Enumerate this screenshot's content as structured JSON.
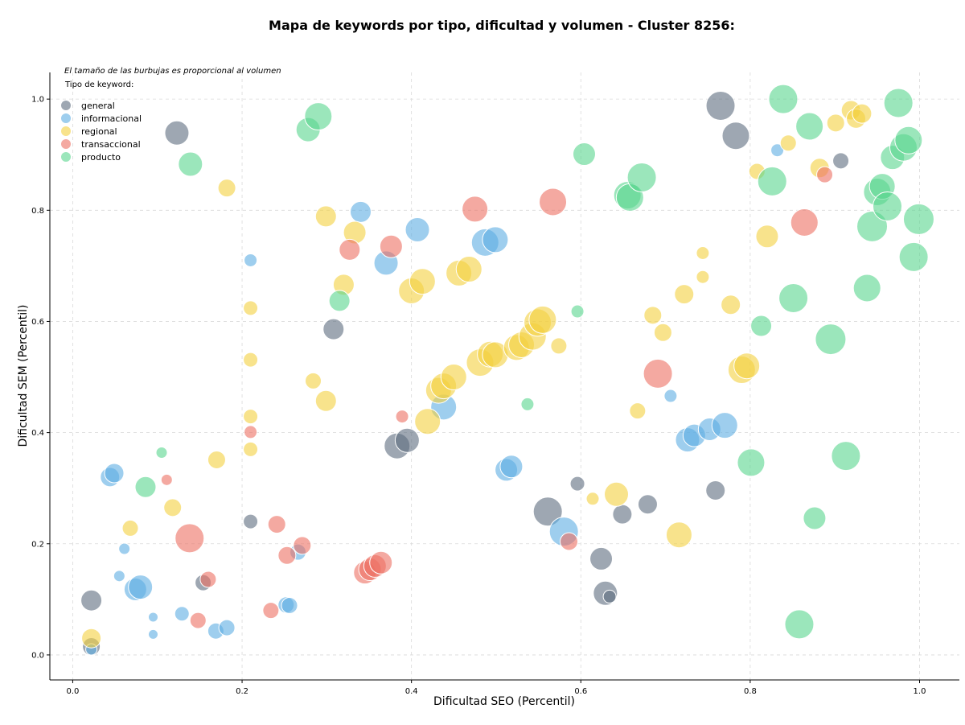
{
  "chart_data": {
    "type": "scatter",
    "title": "Mapa de keywords por tipo, dificultad y volumen - Cluster 8256:",
    "xlabel": "Dificultad SEO (Percentil)",
    "ylabel": "Dificultad SEM (Percentil)",
    "xlim": [
      -0.027,
      1.047
    ],
    "ylim": [
      -0.045,
      1.048
    ],
    "xticks": [
      "0.0",
      "0.2",
      "0.4",
      "0.6",
      "0.8",
      "1.0"
    ],
    "yticks": [
      "0.0",
      "0.2",
      "0.4",
      "0.6",
      "0.8",
      "1.0"
    ],
    "grid": true,
    "legend_placement": "top-left",
    "note": "El tamaño de las burbujas es proporcional al volumen",
    "legend_title": "Tipo de keyword:",
    "series": [
      {
        "name": "general",
        "color": "#5d6d7e",
        "points": [
          {
            "x": 0.022,
            "y": 0.098,
            "r": 13
          },
          {
            "x": 0.022,
            "y": 0.015,
            "r": 11
          },
          {
            "x": 0.123,
            "y": 0.939,
            "r": 15
          },
          {
            "x": 0.154,
            "y": 0.13,
            "r": 10
          },
          {
            "x": 0.21,
            "y": 0.24,
            "r": 9
          },
          {
            "x": 0.308,
            "y": 0.586,
            "r": 13
          },
          {
            "x": 0.383,
            "y": 0.376,
            "r": 16
          },
          {
            "x": 0.395,
            "y": 0.386,
            "r": 15
          },
          {
            "x": 0.561,
            "y": 0.258,
            "r": 18
          },
          {
            "x": 0.596,
            "y": 0.308,
            "r": 9
          },
          {
            "x": 0.624,
            "y": 0.173,
            "r": 14
          },
          {
            "x": 0.629,
            "y": 0.111,
            "r": 15
          },
          {
            "x": 0.634,
            "y": 0.105,
            "r": 8
          },
          {
            "x": 0.649,
            "y": 0.253,
            "r": 12
          },
          {
            "x": 0.679,
            "y": 0.271,
            "r": 12
          },
          {
            "x": 0.759,
            "y": 0.296,
            "r": 12
          },
          {
            "x": 0.765,
            "y": 0.988,
            "r": 18
          },
          {
            "x": 0.783,
            "y": 0.934,
            "r": 17
          },
          {
            "x": 0.907,
            "y": 0.889,
            "r": 10
          }
        ]
      },
      {
        "name": "informacional",
        "color": "#5dade2",
        "points": [
          {
            "x": 0.022,
            "y": 0.01,
            "r": 7
          },
          {
            "x": 0.044,
            "y": 0.32,
            "r": 12
          },
          {
            "x": 0.049,
            "y": 0.327,
            "r": 12
          },
          {
            "x": 0.055,
            "y": 0.142,
            "r": 7
          },
          {
            "x": 0.061,
            "y": 0.191,
            "r": 7
          },
          {
            "x": 0.074,
            "y": 0.118,
            "r": 14
          },
          {
            "x": 0.08,
            "y": 0.122,
            "r": 15
          },
          {
            "x": 0.095,
            "y": 0.068,
            "r": 6
          },
          {
            "x": 0.095,
            "y": 0.037,
            "r": 6
          },
          {
            "x": 0.129,
            "y": 0.074,
            "r": 9
          },
          {
            "x": 0.169,
            "y": 0.043,
            "r": 10
          },
          {
            "x": 0.182,
            "y": 0.049,
            "r": 10
          },
          {
            "x": 0.21,
            "y": 0.71,
            "r": 8
          },
          {
            "x": 0.252,
            "y": 0.09,
            "r": 10
          },
          {
            "x": 0.256,
            "y": 0.089,
            "r": 10
          },
          {
            "x": 0.266,
            "y": 0.185,
            "r": 10
          },
          {
            "x": 0.34,
            "y": 0.797,
            "r": 13
          },
          {
            "x": 0.37,
            "y": 0.705,
            "r": 15
          },
          {
            "x": 0.407,
            "y": 0.765,
            "r": 15
          },
          {
            "x": 0.438,
            "y": 0.446,
            "r": 16
          },
          {
            "x": 0.487,
            "y": 0.742,
            "r": 17
          },
          {
            "x": 0.499,
            "y": 0.747,
            "r": 16
          },
          {
            "x": 0.512,
            "y": 0.333,
            "r": 14
          },
          {
            "x": 0.518,
            "y": 0.339,
            "r": 14
          },
          {
            "x": 0.58,
            "y": 0.222,
            "r": 18
          },
          {
            "x": 0.706,
            "y": 0.466,
            "r": 8
          },
          {
            "x": 0.726,
            "y": 0.387,
            "r": 15
          },
          {
            "x": 0.734,
            "y": 0.395,
            "r": 14
          },
          {
            "x": 0.752,
            "y": 0.406,
            "r": 14
          },
          {
            "x": 0.77,
            "y": 0.413,
            "r": 16
          },
          {
            "x": 0.832,
            "y": 0.908,
            "r": 8
          }
        ]
      },
      {
        "name": "regional",
        "color": "#f4d03f",
        "points": [
          {
            "x": 0.022,
            "y": 0.03,
            "r": 12
          },
          {
            "x": 0.068,
            "y": 0.228,
            "r": 10
          },
          {
            "x": 0.118,
            "y": 0.265,
            "r": 11
          },
          {
            "x": 0.17,
            "y": 0.351,
            "r": 11
          },
          {
            "x": 0.182,
            "y": 0.84,
            "r": 11
          },
          {
            "x": 0.21,
            "y": 0.624,
            "r": 9
          },
          {
            "x": 0.21,
            "y": 0.531,
            "r": 9
          },
          {
            "x": 0.21,
            "y": 0.429,
            "r": 9
          },
          {
            "x": 0.21,
            "y": 0.37,
            "r": 9
          },
          {
            "x": 0.284,
            "y": 0.493,
            "r": 10
          },
          {
            "x": 0.299,
            "y": 0.789,
            "r": 13
          },
          {
            "x": 0.299,
            "y": 0.457,
            "r": 13
          },
          {
            "x": 0.32,
            "y": 0.666,
            "r": 13
          },
          {
            "x": 0.333,
            "y": 0.76,
            "r": 14
          },
          {
            "x": 0.4,
            "y": 0.655,
            "r": 16
          },
          {
            "x": 0.413,
            "y": 0.672,
            "r": 16
          },
          {
            "x": 0.419,
            "y": 0.42,
            "r": 16
          },
          {
            "x": 0.432,
            "y": 0.476,
            "r": 16
          },
          {
            "x": 0.438,
            "y": 0.484,
            "r": 16
          },
          {
            "x": 0.45,
            "y": 0.5,
            "r": 16
          },
          {
            "x": 0.456,
            "y": 0.687,
            "r": 16
          },
          {
            "x": 0.468,
            "y": 0.694,
            "r": 16
          },
          {
            "x": 0.481,
            "y": 0.526,
            "r": 17
          },
          {
            "x": 0.493,
            "y": 0.541,
            "r": 16
          },
          {
            "x": 0.499,
            "y": 0.54,
            "r": 16
          },
          {
            "x": 0.524,
            "y": 0.553,
            "r": 16
          },
          {
            "x": 0.53,
            "y": 0.558,
            "r": 16
          },
          {
            "x": 0.543,
            "y": 0.573,
            "r": 17
          },
          {
            "x": 0.549,
            "y": 0.598,
            "r": 17
          },
          {
            "x": 0.555,
            "y": 0.603,
            "r": 17
          },
          {
            "x": 0.574,
            "y": 0.556,
            "r": 10
          },
          {
            "x": 0.614,
            "y": 0.281,
            "r": 8
          },
          {
            "x": 0.642,
            "y": 0.289,
            "r": 15
          },
          {
            "x": 0.667,
            "y": 0.439,
            "r": 10
          },
          {
            "x": 0.685,
            "y": 0.611,
            "r": 11
          },
          {
            "x": 0.697,
            "y": 0.58,
            "r": 11
          },
          {
            "x": 0.716,
            "y": 0.216,
            "r": 16
          },
          {
            "x": 0.722,
            "y": 0.649,
            "r": 12
          },
          {
            "x": 0.744,
            "y": 0.723,
            "r": 8
          },
          {
            "x": 0.744,
            "y": 0.68,
            "r": 8
          },
          {
            "x": 0.777,
            "y": 0.63,
            "r": 12
          },
          {
            "x": 0.79,
            "y": 0.513,
            "r": 17
          },
          {
            "x": 0.796,
            "y": 0.52,
            "r": 16
          },
          {
            "x": 0.808,
            "y": 0.87,
            "r": 10
          },
          {
            "x": 0.82,
            "y": 0.753,
            "r": 14
          },
          {
            "x": 0.845,
            "y": 0.921,
            "r": 10
          },
          {
            "x": 0.882,
            "y": 0.876,
            "r": 12
          },
          {
            "x": 0.901,
            "y": 0.957,
            "r": 11
          },
          {
            "x": 0.919,
            "y": 0.98,
            "r": 12
          },
          {
            "x": 0.925,
            "y": 0.965,
            "r": 12
          },
          {
            "x": 0.932,
            "y": 0.974,
            "r": 12
          }
        ]
      },
      {
        "name": "transaccional",
        "color": "#ec7063",
        "points": [
          {
            "x": 0.111,
            "y": 0.315,
            "r": 7
          },
          {
            "x": 0.138,
            "y": 0.21,
            "r": 18
          },
          {
            "x": 0.148,
            "y": 0.062,
            "r": 10
          },
          {
            "x": 0.16,
            "y": 0.136,
            "r": 10
          },
          {
            "x": 0.21,
            "y": 0.401,
            "r": 8
          },
          {
            "x": 0.234,
            "y": 0.08,
            "r": 10
          },
          {
            "x": 0.241,
            "y": 0.235,
            "r": 11
          },
          {
            "x": 0.253,
            "y": 0.179,
            "r": 11
          },
          {
            "x": 0.271,
            "y": 0.197,
            "r": 11
          },
          {
            "x": 0.327,
            "y": 0.729,
            "r": 13
          },
          {
            "x": 0.345,
            "y": 0.148,
            "r": 14
          },
          {
            "x": 0.351,
            "y": 0.154,
            "r": 14
          },
          {
            "x": 0.357,
            "y": 0.16,
            "r": 14
          },
          {
            "x": 0.364,
            "y": 0.166,
            "r": 14
          },
          {
            "x": 0.376,
            "y": 0.735,
            "r": 14
          },
          {
            "x": 0.389,
            "y": 0.429,
            "r": 8
          },
          {
            "x": 0.475,
            "y": 0.802,
            "r": 16
          },
          {
            "x": 0.567,
            "y": 0.815,
            "r": 17
          },
          {
            "x": 0.586,
            "y": 0.204,
            "r": 11
          },
          {
            "x": 0.691,
            "y": 0.506,
            "r": 18
          },
          {
            "x": 0.864,
            "y": 0.778,
            "r": 17
          },
          {
            "x": 0.888,
            "y": 0.864,
            "r": 10
          }
        ]
      },
      {
        "name": "producto",
        "color": "#58d68d",
        "points": [
          {
            "x": 0.086,
            "y": 0.302,
            "r": 13
          },
          {
            "x": 0.105,
            "y": 0.364,
            "r": 7
          },
          {
            "x": 0.139,
            "y": 0.883,
            "r": 15
          },
          {
            "x": 0.278,
            "y": 0.945,
            "r": 15
          },
          {
            "x": 0.29,
            "y": 0.969,
            "r": 17
          },
          {
            "x": 0.315,
            "y": 0.637,
            "r": 13
          },
          {
            "x": 0.537,
            "y": 0.451,
            "r": 8
          },
          {
            "x": 0.596,
            "y": 0.618,
            "r": 8
          },
          {
            "x": 0.604,
            "y": 0.901,
            "r": 14
          },
          {
            "x": 0.655,
            "y": 0.827,
            "r": 17
          },
          {
            "x": 0.658,
            "y": 0.823,
            "r": 17
          },
          {
            "x": 0.672,
            "y": 0.859,
            "r": 18
          },
          {
            "x": 0.801,
            "y": 0.346,
            "r": 17
          },
          {
            "x": 0.813,
            "y": 0.592,
            "r": 13
          },
          {
            "x": 0.826,
            "y": 0.852,
            "r": 18
          },
          {
            "x": 0.839,
            "y": 1.0,
            "r": 18
          },
          {
            "x": 0.851,
            "y": 0.642,
            "r": 18
          },
          {
            "x": 0.858,
            "y": 0.055,
            "r": 18
          },
          {
            "x": 0.87,
            "y": 0.951,
            "r": 17
          },
          {
            "x": 0.876,
            "y": 0.246,
            "r": 14
          },
          {
            "x": 0.895,
            "y": 0.568,
            "r": 19
          },
          {
            "x": 0.913,
            "y": 0.358,
            "r": 18
          },
          {
            "x": 0.938,
            "y": 0.66,
            "r": 17
          },
          {
            "x": 0.944,
            "y": 0.771,
            "r": 19
          },
          {
            "x": 0.95,
            "y": 0.833,
            "r": 17
          },
          {
            "x": 0.956,
            "y": 0.843,
            "r": 16
          },
          {
            "x": 0.962,
            "y": 0.807,
            "r": 18
          },
          {
            "x": 0.968,
            "y": 0.895,
            "r": 15
          },
          {
            "x": 0.975,
            "y": 0.993,
            "r": 18
          },
          {
            "x": 0.981,
            "y": 0.913,
            "r": 17
          },
          {
            "x": 0.987,
            "y": 0.926,
            "r": 17
          },
          {
            "x": 0.993,
            "y": 0.716,
            "r": 18
          },
          {
            "x": 0.999,
            "y": 0.784,
            "r": 19
          }
        ]
      }
    ]
  }
}
